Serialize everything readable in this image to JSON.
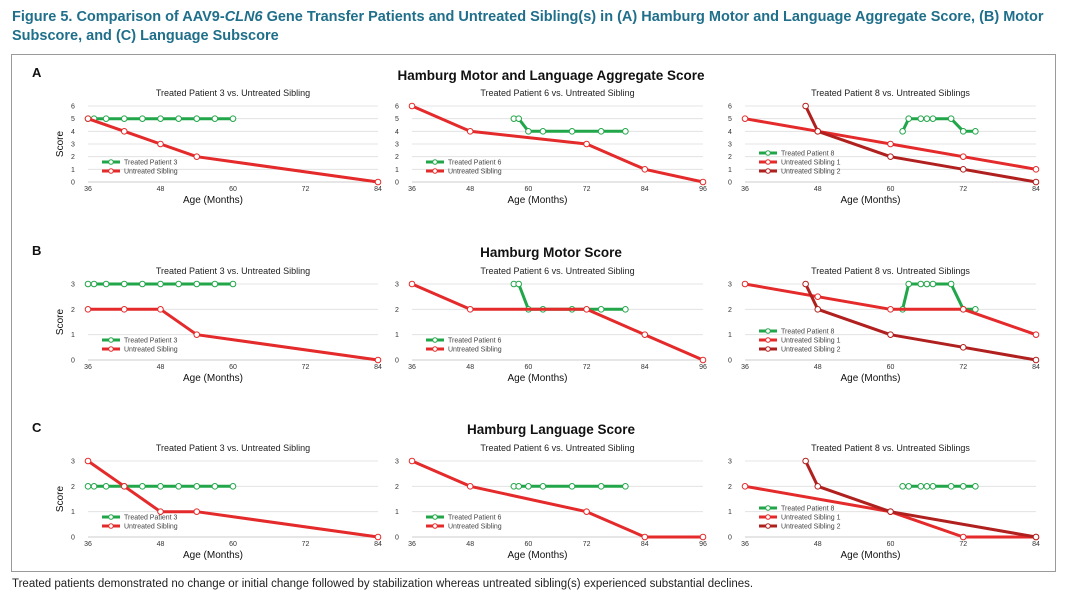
{
  "figure": {
    "title_prefix": "Figure 5. Comparison of AAV9-",
    "title_italic": "CLN6",
    "title_suffix": " Gene Transfer Patients and Untreated Sibling(s) in (A) Hamburg Motor and Language Aggregate Score, (B) Motor Subscore, and (C) Language Subscore",
    "caption": "Treated patients demonstrated no change or initial change followed by stabilization whereas untreated sibling(s) experienced substantial declines."
  },
  "colors": {
    "treated": "#22a64a",
    "sibling1": "#e42a2a",
    "sibling2": "#b0201e",
    "grid": "#dddddd",
    "title": "#1f6f8b"
  },
  "rows": [
    {
      "letter": "A",
      "heading": "Hamburg Motor and Language Aggregate Score"
    },
    {
      "letter": "B",
      "heading": "Hamburg Motor Score"
    },
    {
      "letter": "C",
      "heading": "Hamburg Language Score"
    }
  ],
  "chart_data": [
    {
      "type": "line",
      "row": "A",
      "col": 0,
      "title": "Treated Patient 3 vs. Untreated Sibling",
      "xlabel": "Age (Months)",
      "ylabel": "Score",
      "xlim": [
        36,
        84
      ],
      "xticks": [
        36,
        48,
        60,
        72,
        84
      ],
      "ylim": [
        0,
        6
      ],
      "yticks": [
        0,
        1,
        2,
        3,
        4,
        5,
        6
      ],
      "grid": true,
      "legend": "bottom-left",
      "series": [
        {
          "name": "Treated Patient 3",
          "color": "#22a64a",
          "x": [
            36,
            37,
            39,
            42,
            45,
            48,
            51,
            54,
            57,
            60
          ],
          "y": [
            5,
            5,
            5,
            5,
            5,
            5,
            5,
            5,
            5,
            5
          ]
        },
        {
          "name": "Untreated Sibling",
          "color": "#e42a2a",
          "x": [
            36,
            42,
            48,
            54,
            84
          ],
          "y": [
            5,
            4,
            3,
            2,
            0
          ]
        }
      ]
    },
    {
      "type": "line",
      "row": "A",
      "col": 1,
      "title": "Treated Patient 6 vs. Untreated Sibling",
      "xlabel": "Age (Months)",
      "ylabel": "",
      "xlim": [
        36,
        96
      ],
      "xticks": [
        36,
        48,
        60,
        72,
        84,
        96
      ],
      "ylim": [
        0,
        6
      ],
      "yticks": [
        0,
        1,
        2,
        3,
        4,
        5,
        6
      ],
      "grid": true,
      "legend": "bottom-left",
      "series": [
        {
          "name": "Treated Patient 6",
          "color": "#22a64a",
          "x": [
            57,
            58,
            60,
            63,
            69,
            75,
            80
          ],
          "y": [
            5,
            5,
            4,
            4,
            4,
            4,
            4
          ]
        },
        {
          "name": "Untreated Sibling",
          "color": "#e42a2a",
          "x": [
            36,
            48,
            72,
            84,
            96
          ],
          "y": [
            6,
            4,
            3,
            1,
            0
          ]
        }
      ]
    },
    {
      "type": "line",
      "row": "A",
      "col": 2,
      "title": "Treated Patient 8 vs. Untreated Siblings",
      "xlabel": "Age (Months)",
      "ylabel": "",
      "xlim": [
        36,
        84
      ],
      "xticks": [
        36,
        48,
        60,
        72,
        84
      ],
      "ylim": [
        0,
        6
      ],
      "yticks": [
        0,
        1,
        2,
        3,
        4,
        5,
        6
      ],
      "grid": true,
      "legend": "bottom-left",
      "series": [
        {
          "name": "Treated Patient 8",
          "color": "#22a64a",
          "x": [
            62,
            63,
            65,
            66,
            67,
            70,
            72,
            74
          ],
          "y": [
            4,
            5,
            5,
            5,
            5,
            5,
            4,
            4
          ]
        },
        {
          "name": "Untreated Sibling 1",
          "color": "#e42a2a",
          "x": [
            36,
            48,
            60,
            72,
            84
          ],
          "y": [
            5,
            4,
            3,
            2,
            1
          ]
        },
        {
          "name": "Untreated Sibling 2",
          "color": "#b0201e",
          "x": [
            46,
            48,
            60,
            72,
            84
          ],
          "y": [
            6,
            4,
            2,
            1,
            0
          ]
        }
      ]
    },
    {
      "type": "line",
      "row": "B",
      "col": 0,
      "title": "Treated Patient 3 vs. Untreated Sibling",
      "xlabel": "Age (Months)",
      "ylabel": "Score",
      "xlim": [
        36,
        84
      ],
      "xticks": [
        36,
        48,
        60,
        72,
        84
      ],
      "ylim": [
        0,
        3
      ],
      "yticks": [
        0,
        1,
        2,
        3
      ],
      "grid": true,
      "legend": "bottom-left",
      "series": [
        {
          "name": "Treated Patient 3",
          "color": "#22a64a",
          "x": [
            36,
            37,
            39,
            42,
            45,
            48,
            51,
            54,
            57,
            60
          ],
          "y": [
            3,
            3,
            3,
            3,
            3,
            3,
            3,
            3,
            3,
            3
          ]
        },
        {
          "name": "Untreated Sibling",
          "color": "#e42a2a",
          "x": [
            36,
            42,
            48,
            54,
            84
          ],
          "y": [
            2,
            2,
            2,
            1,
            0
          ]
        }
      ]
    },
    {
      "type": "line",
      "row": "B",
      "col": 1,
      "title": "Treated Patient 6 vs. Untreated Sibling",
      "xlabel": "Age (Months)",
      "ylabel": "",
      "xlim": [
        36,
        96
      ],
      "xticks": [
        36,
        48,
        60,
        72,
        84,
        96
      ],
      "ylim": [
        0,
        3
      ],
      "yticks": [
        0,
        1,
        2,
        3
      ],
      "grid": true,
      "legend": "bottom-left",
      "series": [
        {
          "name": "Treated Patient 6",
          "color": "#22a64a",
          "x": [
            57,
            58,
            60,
            63,
            69,
            75,
            80
          ],
          "y": [
            3,
            3,
            2,
            2,
            2,
            2,
            2
          ]
        },
        {
          "name": "Untreated Sibling",
          "color": "#e42a2a",
          "x": [
            36,
            48,
            72,
            84,
            96
          ],
          "y": [
            3,
            2,
            2,
            1,
            0
          ]
        }
      ]
    },
    {
      "type": "line",
      "row": "B",
      "col": 2,
      "title": "Treated Patient 8 vs. Untreated Siblings",
      "xlabel": "Age (Months)",
      "ylabel": "",
      "xlim": [
        36,
        84
      ],
      "xticks": [
        36,
        48,
        60,
        72,
        84
      ],
      "ylim": [
        0,
        3
      ],
      "yticks": [
        0,
        1,
        2,
        3
      ],
      "grid": true,
      "legend": "bottom-left",
      "series": [
        {
          "name": "Treated Patient 8",
          "color": "#22a64a",
          "x": [
            62,
            63,
            65,
            66,
            67,
            70,
            72,
            74
          ],
          "y": [
            2,
            3,
            3,
            3,
            3,
            3,
            2,
            2
          ]
        },
        {
          "name": "Untreated Sibling 1",
          "color": "#e42a2a",
          "x": [
            36,
            48,
            60,
            72,
            84
          ],
          "y": [
            3,
            2.5,
            2,
            2,
            1
          ]
        },
        {
          "name": "Untreated Sibling 2",
          "color": "#b0201e",
          "x": [
            46,
            48,
            60,
            72,
            84
          ],
          "y": [
            3,
            2,
            1,
            0.5,
            0
          ]
        }
      ]
    },
    {
      "type": "line",
      "row": "C",
      "col": 0,
      "title": "Treated Patient 3 vs. Untreated Sibling",
      "xlabel": "Age (Months)",
      "ylabel": "Score",
      "xlim": [
        36,
        84
      ],
      "xticks": [
        36,
        48,
        60,
        72,
        84
      ],
      "ylim": [
        0,
        3
      ],
      "yticks": [
        0,
        1,
        2,
        3
      ],
      "grid": true,
      "legend": "bottom-left",
      "series": [
        {
          "name": "Treated Patient 3",
          "color": "#22a64a",
          "x": [
            36,
            37,
            39,
            42,
            45,
            48,
            51,
            54,
            57,
            60
          ],
          "y": [
            2,
            2,
            2,
            2,
            2,
            2,
            2,
            2,
            2,
            2
          ]
        },
        {
          "name": "Untreated Sibling",
          "color": "#e42a2a",
          "x": [
            36,
            42,
            48,
            54,
            84
          ],
          "y": [
            3,
            2,
            1,
            1,
            0
          ]
        }
      ]
    },
    {
      "type": "line",
      "row": "C",
      "col": 1,
      "title": "Treated Patient 6 vs. Untreated Sibling",
      "xlabel": "Age (Months)",
      "ylabel": "",
      "xlim": [
        36,
        96
      ],
      "xticks": [
        36,
        48,
        60,
        72,
        84,
        96
      ],
      "ylim": [
        0,
        3
      ],
      "yticks": [
        0,
        1,
        2,
        3
      ],
      "grid": true,
      "legend": "bottom-left",
      "series": [
        {
          "name": "Treated Patient 6",
          "color": "#22a64a",
          "x": [
            57,
            58,
            60,
            63,
            69,
            75,
            80
          ],
          "y": [
            2,
            2,
            2,
            2,
            2,
            2,
            2
          ]
        },
        {
          "name": "Untreated Sibling",
          "color": "#e42a2a",
          "x": [
            36,
            48,
            72,
            84,
            96
          ],
          "y": [
            3,
            2,
            1,
            0,
            0
          ]
        }
      ]
    },
    {
      "type": "line",
      "row": "C",
      "col": 2,
      "title": "Treated Patient 8 vs. Untreated Siblings",
      "xlabel": "Age (Months)",
      "ylabel": "",
      "xlim": [
        36,
        84
      ],
      "xticks": [
        36,
        48,
        60,
        72,
        84
      ],
      "ylim": [
        0,
        3
      ],
      "yticks": [
        0,
        1,
        2,
        3
      ],
      "grid": true,
      "legend": "bottom-left",
      "series": [
        {
          "name": "Treated Patient 8",
          "color": "#22a64a",
          "x": [
            62,
            63,
            65,
            66,
            67,
            70,
            72,
            74
          ],
          "y": [
            2,
            2,
            2,
            2,
            2,
            2,
            2,
            2
          ]
        },
        {
          "name": "Untreated Sibling 1",
          "color": "#e42a2a",
          "x": [
            36,
            60,
            72,
            84
          ],
          "y": [
            2,
            1,
            0,
            0
          ]
        },
        {
          "name": "Untreated Sibling 2",
          "color": "#b0201e",
          "x": [
            46,
            48,
            60,
            84
          ],
          "y": [
            3,
            2,
            1,
            0
          ]
        }
      ]
    }
  ]
}
